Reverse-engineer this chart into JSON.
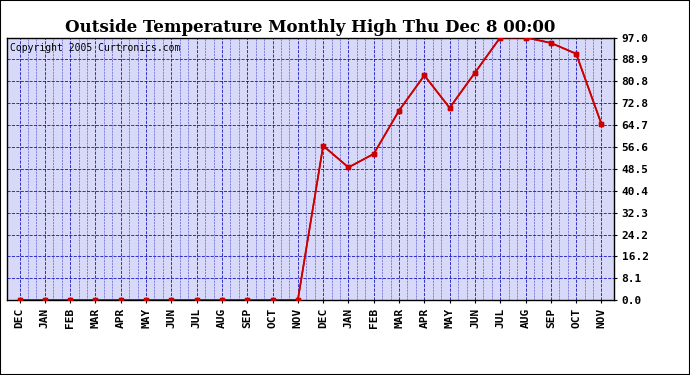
{
  "title": "Outside Temperature Monthly High Thu Dec 8 00:00",
  "copyright": "Copyright 2005 Curtronics.com",
  "x_labels": [
    "DEC",
    "JAN",
    "FEB",
    "MAR",
    "APR",
    "MAY",
    "JUN",
    "JUL",
    "AUG",
    "SEP",
    "OCT",
    "NOV",
    "DEC",
    "JAN",
    "FEB",
    "MAR",
    "APR",
    "MAY",
    "JUN",
    "JUL",
    "AUG",
    "SEP",
    "OCT",
    "NOV"
  ],
  "y_values": [
    0.0,
    0.0,
    0.0,
    0.0,
    0.0,
    0.0,
    0.0,
    0.0,
    0.0,
    0.0,
    0.0,
    0.0,
    57.0,
    49.0,
    54.0,
    70.0,
    83.0,
    71.0,
    84.0,
    97.0,
    97.0,
    95.0,
    91.0,
    65.0
  ],
  "y_ticks": [
    0.0,
    8.1,
    16.2,
    24.2,
    32.3,
    40.4,
    48.5,
    56.6,
    64.7,
    72.8,
    80.8,
    88.9,
    97.0
  ],
  "ylim": [
    0.0,
    97.0
  ],
  "line_color": "#cc0000",
  "marker": "s",
  "marker_size": 2.5,
  "grid_color": "#0000bb",
  "bg_color": "#d8d8f8",
  "border_color": "#000000",
  "title_fontsize": 12,
  "copyright_fontsize": 7,
  "tick_label_fontsize": 8
}
